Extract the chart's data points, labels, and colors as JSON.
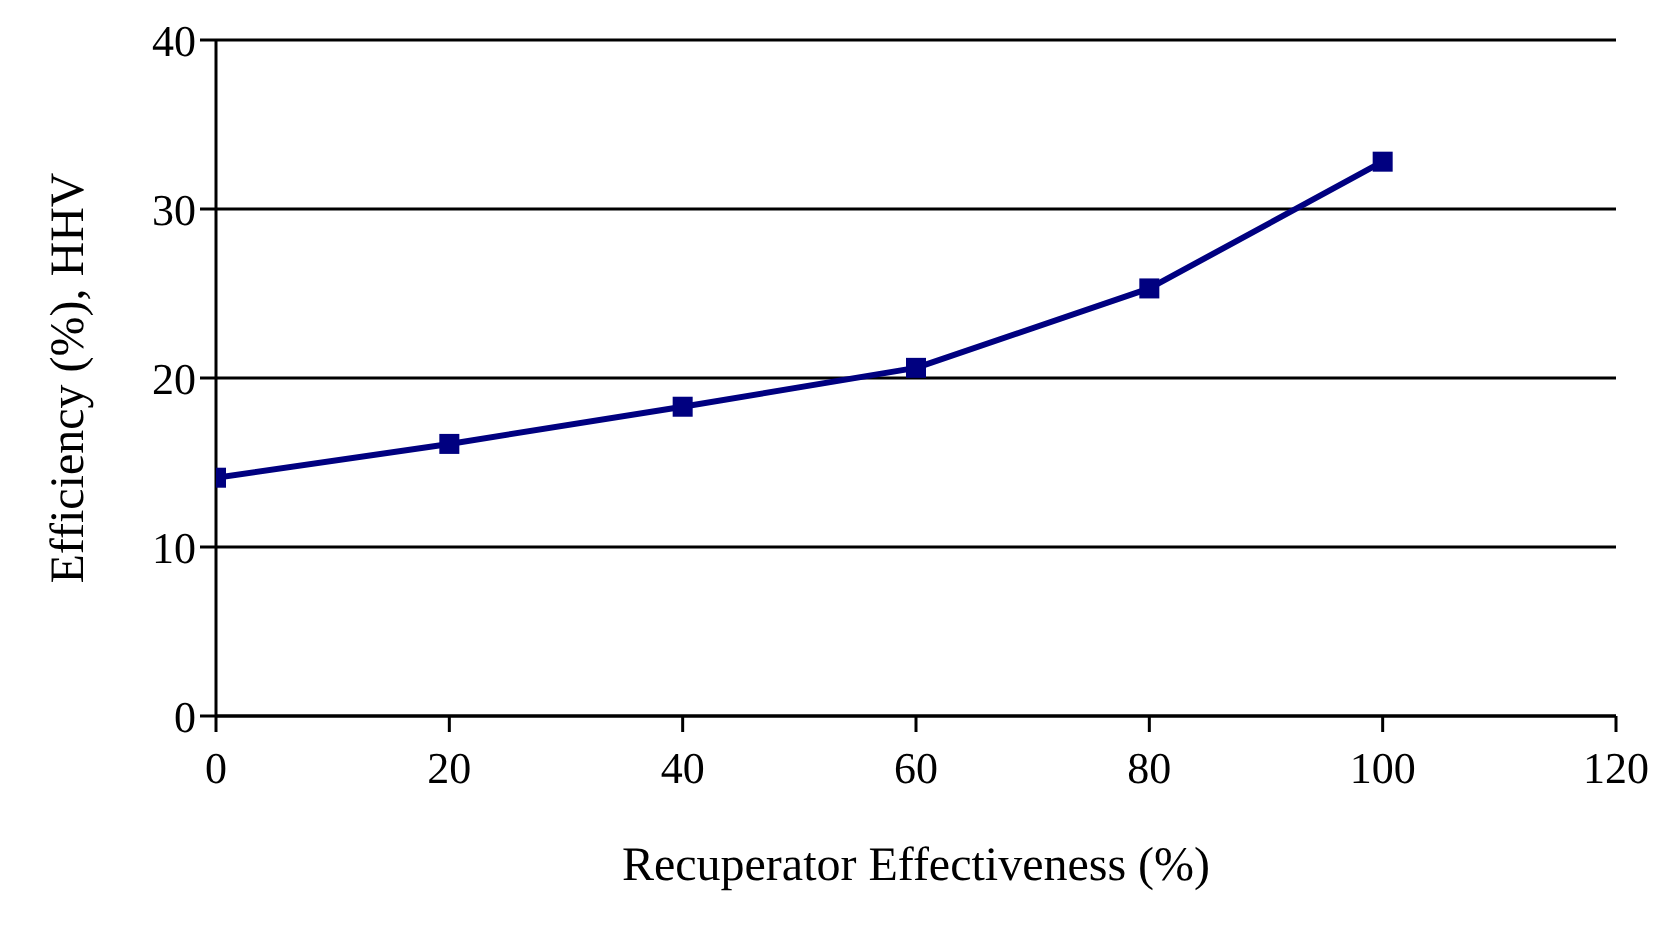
{
  "chart_data": {
    "type": "line",
    "xlabel": "Recuperator Effectiveness (%)",
    "ylabel": "Efficiency (%), HHV",
    "x": [
      0,
      20,
      40,
      60,
      80,
      100
    ],
    "series": [
      {
        "color": "#000080",
        "values": [
          14.1,
          16.1,
          18.3,
          20.6,
          25.3,
          32.8
        ]
      }
    ],
    "xlim": [
      0,
      120
    ],
    "xticks": [
      0,
      20,
      40,
      60,
      80,
      100,
      120
    ],
    "ylim": [
      0,
      40
    ],
    "yticks": [
      0,
      10,
      20,
      30,
      40
    ],
    "grid": "y",
    "legend": false,
    "marker": "square",
    "line_style": "solid"
  }
}
